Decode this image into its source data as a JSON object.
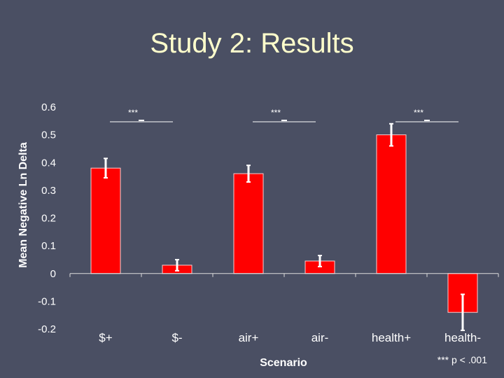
{
  "slide": {
    "title": "Study 2: Results",
    "footnote": "*** p < .001"
  },
  "chart_data": {
    "type": "bar",
    "title": "",
    "xlabel": "Scenario",
    "ylabel": "Mean Negative Ln Delta",
    "ylim": [
      -0.2,
      0.6
    ],
    "yticks": [
      0.6,
      0.5,
      0.4,
      0.3,
      0.2,
      0.1,
      0,
      -0.1,
      -0.2
    ],
    "ytick_labels": [
      "0.6",
      "0.5",
      "0.4",
      "0.3",
      "0.2",
      "0.1",
      "0",
      "-0.1",
      "-0.2"
    ],
    "categories": [
      "$+",
      "$-",
      "air+",
      "air-",
      "health+",
      "health-"
    ],
    "values": [
      0.38,
      0.03,
      0.36,
      0.045,
      0.5,
      -0.14
    ],
    "errors": [
      0.035,
      0.02,
      0.03,
      0.02,
      0.04,
      0.065
    ],
    "bar_color": "#ff0000",
    "error_color": "#ffffff",
    "grid": false,
    "significance": [
      {
        "label": "***",
        "pair": [
          0,
          1
        ]
      },
      {
        "label": "***",
        "pair": [
          2,
          3
        ]
      },
      {
        "label": "***",
        "pair": [
          4,
          5
        ]
      }
    ]
  }
}
